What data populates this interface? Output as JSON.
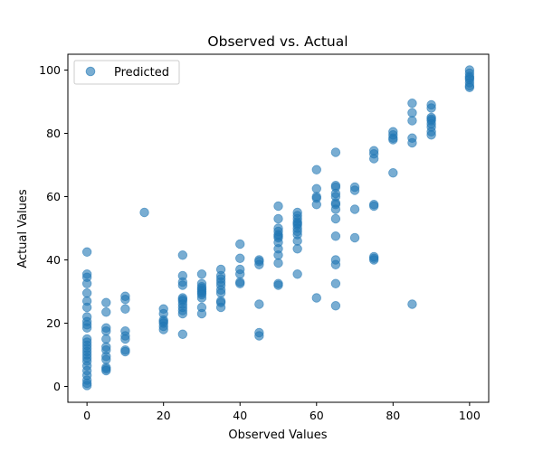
{
  "chart_data": {
    "type": "scatter",
    "title": "Observed vs. Actual",
    "xlabel": "Observed Values",
    "ylabel": "Actual Values",
    "xlim": [
      -5,
      105
    ],
    "ylim": [
      -5,
      105
    ],
    "x_ticks": [
      "0",
      "20",
      "40",
      "60",
      "80",
      "100"
    ],
    "y_ticks": [
      "0",
      "20",
      "40",
      "60",
      "80",
      "100"
    ],
    "grid": false,
    "legend_position": "top-left",
    "series": [
      {
        "name": "Predicted",
        "color": "#1f77b4",
        "alpha": 0.6,
        "points": [
          [
            0,
            42.5
          ],
          [
            0,
            35.5
          ],
          [
            0,
            34.5
          ],
          [
            0,
            32.5
          ],
          [
            0,
            29.5
          ],
          [
            0,
            27
          ],
          [
            0,
            25
          ],
          [
            0,
            22
          ],
          [
            0,
            20.5
          ],
          [
            0,
            19.5
          ],
          [
            0,
            18.5
          ],
          [
            0,
            15
          ],
          [
            0,
            14
          ],
          [
            0,
            13
          ],
          [
            0,
            12
          ],
          [
            0,
            11
          ],
          [
            0,
            10
          ],
          [
            0,
            9
          ],
          [
            0,
            8
          ],
          [
            0,
            6.5
          ],
          [
            0,
            5
          ],
          [
            0,
            3.5
          ],
          [
            0,
            2
          ],
          [
            0,
            1
          ],
          [
            0,
            0.3
          ],
          [
            5,
            26.5
          ],
          [
            5,
            23.5
          ],
          [
            5,
            18.5
          ],
          [
            5,
            17.5
          ],
          [
            5,
            15
          ],
          [
            5,
            12.5
          ],
          [
            5,
            11.5
          ],
          [
            5,
            9.5
          ],
          [
            5,
            8.5
          ],
          [
            5,
            6
          ],
          [
            5,
            5.5
          ],
          [
            5,
            5
          ],
          [
            10,
            28.5
          ],
          [
            10,
            27.5
          ],
          [
            10,
            24.5
          ],
          [
            10,
            17.5
          ],
          [
            10,
            16
          ],
          [
            10,
            15
          ],
          [
            10,
            11.5
          ],
          [
            10,
            11
          ],
          [
            15,
            55
          ],
          [
            20,
            24.5
          ],
          [
            20,
            23
          ],
          [
            20,
            21
          ],
          [
            20,
            20.5
          ],
          [
            20,
            20
          ],
          [
            20,
            19
          ],
          [
            20,
            18
          ],
          [
            25,
            41.5
          ],
          [
            25,
            35
          ],
          [
            25,
            33
          ],
          [
            25,
            32
          ],
          [
            25,
            28
          ],
          [
            25,
            27.5
          ],
          [
            25,
            27
          ],
          [
            25,
            26
          ],
          [
            25,
            25
          ],
          [
            25,
            24
          ],
          [
            25,
            23
          ],
          [
            25,
            16.5
          ],
          [
            30,
            35.5
          ],
          [
            30,
            32.5
          ],
          [
            30,
            31.5
          ],
          [
            30,
            31
          ],
          [
            30,
            30.5
          ],
          [
            30,
            30
          ],
          [
            30,
            29.5
          ],
          [
            30,
            29
          ],
          [
            30,
            28
          ],
          [
            30,
            25
          ],
          [
            30,
            23
          ],
          [
            35,
            37
          ],
          [
            35,
            35
          ],
          [
            35,
            34
          ],
          [
            35,
            33
          ],
          [
            35,
            32
          ],
          [
            35,
            30.5
          ],
          [
            35,
            29.5
          ],
          [
            35,
            27
          ],
          [
            35,
            26.5
          ],
          [
            35,
            25
          ],
          [
            40,
            45
          ],
          [
            40,
            40.5
          ],
          [
            40,
            37
          ],
          [
            40,
            35.5
          ],
          [
            40,
            33
          ],
          [
            40,
            32.5
          ],
          [
            45,
            40
          ],
          [
            45,
            39.5
          ],
          [
            45,
            38.5
          ],
          [
            45,
            26
          ],
          [
            45,
            17
          ],
          [
            45,
            16
          ],
          [
            50,
            57
          ],
          [
            50,
            53
          ],
          [
            50,
            50
          ],
          [
            50,
            49
          ],
          [
            50,
            48
          ],
          [
            50,
            47.5
          ],
          [
            50,
            47
          ],
          [
            50,
            45.5
          ],
          [
            50,
            43.5
          ],
          [
            50,
            41.5
          ],
          [
            50,
            39
          ],
          [
            50,
            32.5
          ],
          [
            50,
            32
          ],
          [
            55,
            55
          ],
          [
            55,
            54
          ],
          [
            55,
            53
          ],
          [
            55,
            52
          ],
          [
            55,
            51.5
          ],
          [
            55,
            51
          ],
          [
            55,
            50
          ],
          [
            55,
            49
          ],
          [
            55,
            48
          ],
          [
            55,
            46
          ],
          [
            55,
            43.5
          ],
          [
            55,
            35.5
          ],
          [
            60,
            68.5
          ],
          [
            60,
            62.5
          ],
          [
            60,
            60
          ],
          [
            60,
            59.5
          ],
          [
            60,
            57.5
          ],
          [
            60,
            28
          ],
          [
            65,
            74
          ],
          [
            65,
            63.5
          ],
          [
            65,
            63
          ],
          [
            65,
            61
          ],
          [
            65,
            60
          ],
          [
            65,
            58
          ],
          [
            65,
            57.5
          ],
          [
            65,
            56
          ],
          [
            65,
            53
          ],
          [
            65,
            47.5
          ],
          [
            65,
            40
          ],
          [
            65,
            38.5
          ],
          [
            65,
            32.5
          ],
          [
            65,
            25.5
          ],
          [
            70,
            63
          ],
          [
            70,
            62
          ],
          [
            70,
            56
          ],
          [
            70,
            47
          ],
          [
            75,
            74.5
          ],
          [
            75,
            73.5
          ],
          [
            75,
            72
          ],
          [
            75,
            57.5
          ],
          [
            75,
            57
          ],
          [
            75,
            41
          ],
          [
            75,
            40.5
          ],
          [
            75,
            40
          ],
          [
            80,
            80.5
          ],
          [
            80,
            79.5
          ],
          [
            80,
            78.5
          ],
          [
            80,
            78
          ],
          [
            80,
            67.5
          ],
          [
            85,
            89.5
          ],
          [
            85,
            86.5
          ],
          [
            85,
            84
          ],
          [
            85,
            78.5
          ],
          [
            85,
            77
          ],
          [
            85,
            26
          ],
          [
            90,
            89
          ],
          [
            90,
            88
          ],
          [
            90,
            85
          ],
          [
            90,
            84.5
          ],
          [
            90,
            84
          ],
          [
            90,
            83
          ],
          [
            90,
            82
          ],
          [
            90,
            80.5
          ],
          [
            90,
            79.5
          ],
          [
            100,
            100
          ],
          [
            100,
            99
          ],
          [
            100,
            98
          ],
          [
            100,
            97.5
          ],
          [
            100,
            97
          ],
          [
            100,
            96
          ],
          [
            100,
            95
          ],
          [
            100,
            94.5
          ]
        ]
      }
    ]
  }
}
